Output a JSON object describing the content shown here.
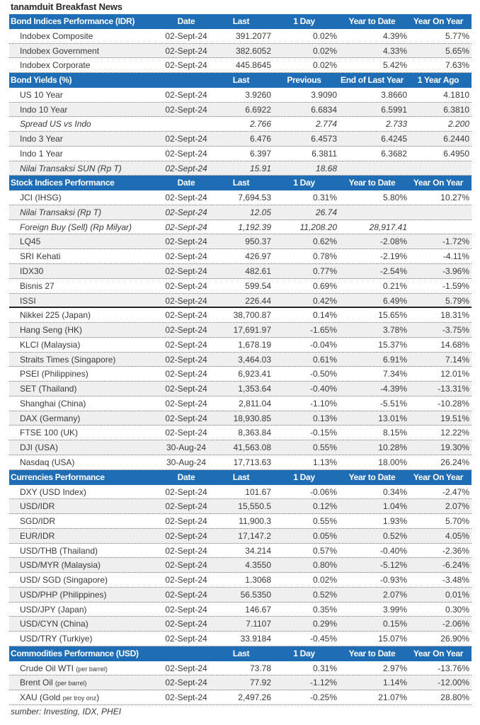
{
  "title": "tanamduit Breakfast News",
  "colors": {
    "header_bg": "#1f6db5",
    "header_text": "#ffffff",
    "alt_row": "#efefef"
  },
  "sections": [
    {
      "headers": [
        "Bond Indices Performance (IDR)",
        "Date",
        "Last",
        "1 Day",
        "Year to Date",
        "Year On Year"
      ],
      "rows": [
        {
          "cells": [
            "Indobex Composite",
            "02-Sept-24",
            "391.2077",
            "0.02%",
            "4.39%",
            "5.77%"
          ]
        },
        {
          "cells": [
            "Indobex Government",
            "02-Sept-24",
            "382.6052",
            "0.02%",
            "4.33%",
            "5.65%"
          ]
        },
        {
          "cells": [
            "Indobex Corporate",
            "02-Sept-24",
            "445.8645",
            "0.02%",
            "5.42%",
            "7.63%"
          ]
        }
      ]
    },
    {
      "headers": [
        "Bond Yields (%)",
        "",
        "Last",
        "Previous",
        "End of Last Year",
        "1 Year Ago"
      ],
      "rows": [
        {
          "cells": [
            "US 10 Year",
            "02-Sept-24",
            "3.9260",
            "3.9090",
            "3.8660",
            "4.1810"
          ]
        },
        {
          "cells": [
            "Indo 10 Year",
            "02-Sept-24",
            "6.6922",
            "6.6834",
            "6.5991",
            "6.3810"
          ]
        },
        {
          "cells": [
            "Spread US vs Indo",
            "",
            "2.766",
            "2.774",
            "2.733",
            "2.200"
          ],
          "italic": true
        },
        {
          "cells": [
            "Indo 3 Year",
            "02-Sept-24",
            "6.476",
            "6.4573",
            "6.4245",
            "6.2440"
          ]
        },
        {
          "cells": [
            "Indo 1 Year",
            "02-Sept-24",
            "6.397",
            "6.3811",
            "6.3682",
            "6.4950"
          ]
        },
        {
          "cells": [
            "Nilai Transaksi SUN (Rp T)",
            "02-Sept-24",
            "15.91",
            "18.68",
            "",
            ""
          ],
          "italic": true
        }
      ]
    },
    {
      "headers": [
        "Stock Indices Performance",
        "Date",
        "Last",
        "1 Day",
        "Year to Date",
        "Year On Year"
      ],
      "rows": [
        {
          "cells": [
            "JCI (IHSG)",
            "02-Sept-24",
            "7,694.53",
            "0.31%",
            "5.80%",
            "10.27%"
          ]
        },
        {
          "cells": [
            "Nilai Transaksi (Rp T)",
            "02-Sept-24",
            "12.05",
            "26.74",
            "",
            ""
          ],
          "italic": true
        },
        {
          "cells": [
            "Foreign Buy (Sell) (Rp Milyar)",
            "02-Sept-24",
            "1,192.39",
            "11,208.20",
            "28,917.41",
            ""
          ],
          "italic": true
        },
        {
          "cells": [
            "LQ45",
            "02-Sept-24",
            "950.37",
            "0.62%",
            "-2.08%",
            "-1.72%"
          ]
        },
        {
          "cells": [
            "SRI Kehati",
            "02-Sept-24",
            "426.97",
            "0.78%",
            "-2.19%",
            "-4.11%"
          ]
        },
        {
          "cells": [
            "IDX30",
            "02-Sept-24",
            "482.61",
            "0.77%",
            "-2.54%",
            "-3.96%"
          ]
        },
        {
          "cells": [
            "Bisnis 27",
            "02-Sept-24",
            "599.54",
            "0.69%",
            "0.21%",
            "-1.59%"
          ]
        },
        {
          "cells": [
            "ISSI",
            "02-Sept-24",
            "226.44",
            "0.42%",
            "6.49%",
            "5.79%"
          ],
          "thick": true
        },
        {
          "cells": [
            "Nikkei 225 (Japan)",
            "02-Sept-24",
            "38,700.87",
            "0.14%",
            "15.65%",
            "18.31%"
          ]
        },
        {
          "cells": [
            "Hang Seng (HK)",
            "02-Sept-24",
            "17,691.97",
            "-1.65%",
            "3.78%",
            "-3.75%"
          ]
        },
        {
          "cells": [
            "KLCI (Malaysia)",
            "02-Sept-24",
            "1,678.19",
            "-0.04%",
            "15.37%",
            "14.68%"
          ]
        },
        {
          "cells": [
            "Straits Times (Singapore)",
            "02-Sept-24",
            "3,464.03",
            "0.61%",
            "6.91%",
            "7.14%"
          ]
        },
        {
          "cells": [
            "PSEI (Philippines)",
            "02-Sept-24",
            "6,923.41",
            "-0.50%",
            "7.34%",
            "12.01%"
          ]
        },
        {
          "cells": [
            "SET (Thailand)",
            "02-Sept-24",
            "1,353.64",
            "-0.40%",
            "-4.39%",
            "-13.31%"
          ]
        },
        {
          "cells": [
            "Shanghai (China)",
            "02-Sept-24",
            "2,811.04",
            "-1.10%",
            "-5.51%",
            "-10.28%"
          ]
        },
        {
          "cells": [
            "DAX (Germany)",
            "02-Sept-24",
            "18,930.85",
            "0.13%",
            "13.01%",
            "19.51%"
          ]
        },
        {
          "cells": [
            "FTSE 100 (UK)",
            "02-Sept-24",
            "8,363.84",
            "-0.15%",
            "8.15%",
            "12.22%"
          ]
        },
        {
          "cells": [
            "DJI (USA)",
            "30-Aug-24",
            "41,563.08",
            "0.55%",
            "10.28%",
            "19.30%"
          ]
        },
        {
          "cells": [
            "Nasdaq (USA)",
            "30-Aug-24",
            "17,713.63",
            "1.13%",
            "18.00%",
            "26.24%"
          ]
        }
      ]
    },
    {
      "headers": [
        "Currencies Performance",
        "Date",
        "Last",
        "1 Day",
        "Year to Date",
        "Year On Year"
      ],
      "rows": [
        {
          "cells": [
            "DXY (USD Index)",
            "02-Sept-24",
            "101.67",
            "-0.06%",
            "0.34%",
            "-2.47%"
          ]
        },
        {
          "cells": [
            "USD/IDR",
            "02-Sept-24",
            "15,550.5",
            "0.12%",
            "1.04%",
            "2.07%"
          ]
        },
        {
          "cells": [
            "SGD/IDR",
            "02-Sept-24",
            "11,900.3",
            "0.55%",
            "1.93%",
            "5.70%"
          ]
        },
        {
          "cells": [
            "EUR/IDR",
            "02-Sept-24",
            "17,147.2",
            "0.05%",
            "0.52%",
            "4.05%"
          ]
        },
        {
          "cells": [
            "USD/THB (Thailand)",
            "02-Sept-24",
            "34.214",
            "0.57%",
            "-0.40%",
            "-2.36%"
          ]
        },
        {
          "cells": [
            "USD/MYR (Malaysia)",
            "02-Sept-24",
            "4.3550",
            "0.80%",
            "-5.12%",
            "-6.24%"
          ]
        },
        {
          "cells": [
            "USD/ SGD (Singapore)",
            "02-Sept-24",
            "1.3068",
            "0.02%",
            "-0.93%",
            "-3.48%"
          ]
        },
        {
          "cells": [
            "USD/PHP (Philippines)",
            "02-Sept-24",
            "56.5350",
            "0.52%",
            "2.07%",
            "0.01%"
          ]
        },
        {
          "cells": [
            "USD/JPY (Japan)",
            "02-Sept-24",
            "146.67",
            "0.35%",
            "3.99%",
            "0.30%"
          ]
        },
        {
          "cells": [
            "USD/CYN (China)",
            "02-Sept-24",
            "7.1107",
            "0.29%",
            "0.15%",
            "-2.06%"
          ]
        },
        {
          "cells": [
            "USD/TRY (Turkiye)",
            "02-Sept-24",
            "33.9184",
            "-0.45%",
            "15.07%",
            "26.90%"
          ]
        }
      ]
    },
    {
      "headers": [
        "Commodities Performance (USD)",
        "",
        "Last",
        "1 Day",
        "Year to Date",
        "Year On Year"
      ],
      "rows": [
        {
          "cells": [
            "Crude Oil WTI ",
            "02-Sept-24",
            "73.78",
            "0.31%",
            "2.97%",
            "-13.76%"
          ],
          "note": "(per barrel)",
          "suffix": ""
        },
        {
          "cells": [
            "Brent Oil ",
            "02-Sept-24",
            "77.92",
            "-1.12%",
            "1.14%",
            "-12.00%"
          ],
          "note": "(per barrel)",
          "suffix": ""
        },
        {
          "cells": [
            "XAU (Gold ",
            "02-Sept-24",
            "2,497.26",
            "-0.25%",
            "21.07%",
            "28.80%"
          ],
          "note": "per troy onz",
          "suffix": ")"
        }
      ]
    }
  ],
  "footer": "sumber: Investing, IDX, PHEI"
}
